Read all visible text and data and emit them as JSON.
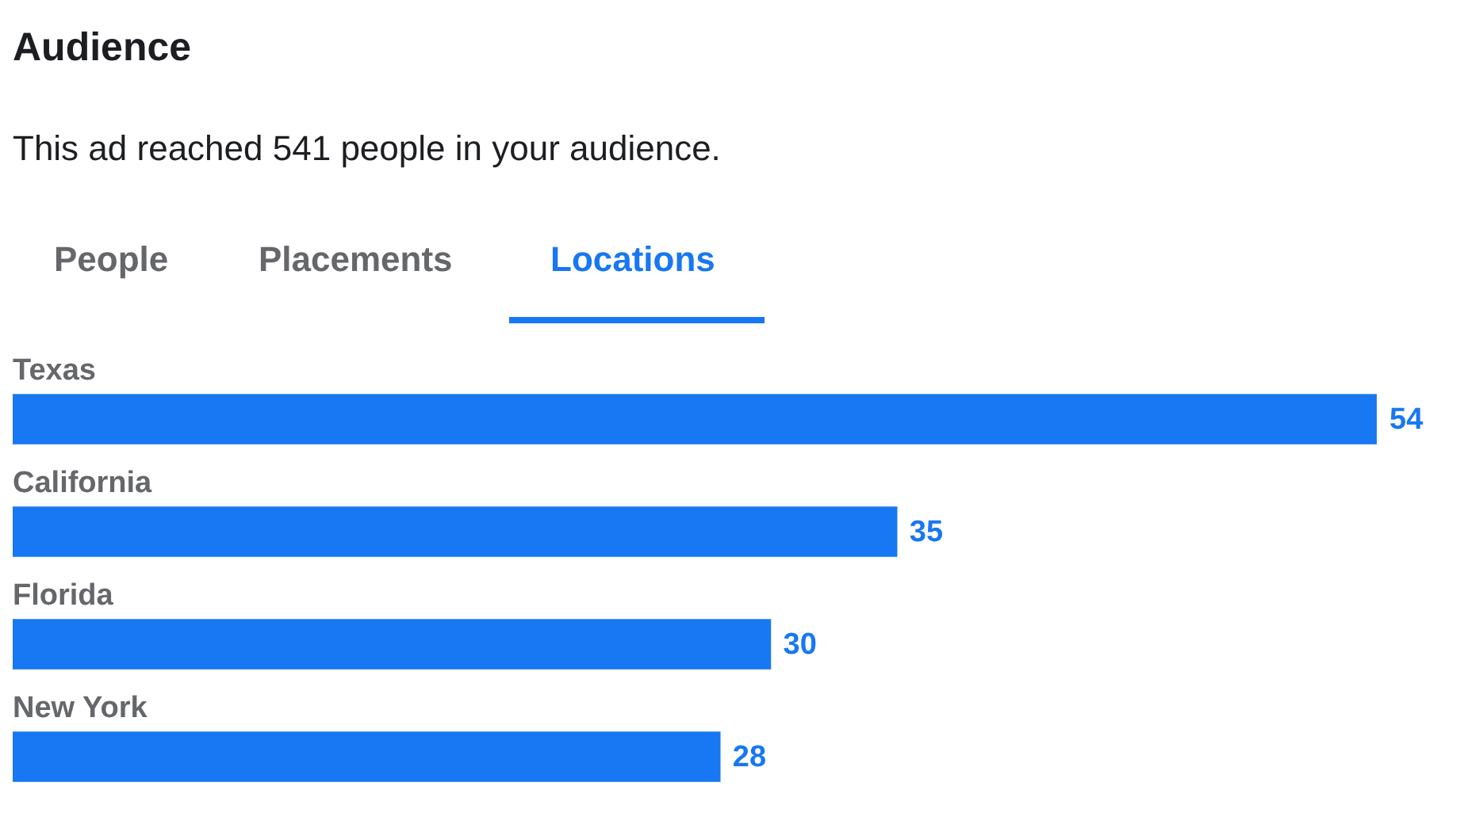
{
  "chart_data": {
    "type": "bar",
    "orientation": "horizontal",
    "title": "Audience",
    "subtitle": "This ad reached 541 people in your audience.",
    "annotations": [
      "People",
      "Placements",
      "Locations"
    ],
    "categories": [
      "Texas",
      "California",
      "Florida",
      "New York"
    ],
    "values": [
      54,
      35,
      30,
      28
    ],
    "color": "#1877f2",
    "data_labels": true
  }
}
